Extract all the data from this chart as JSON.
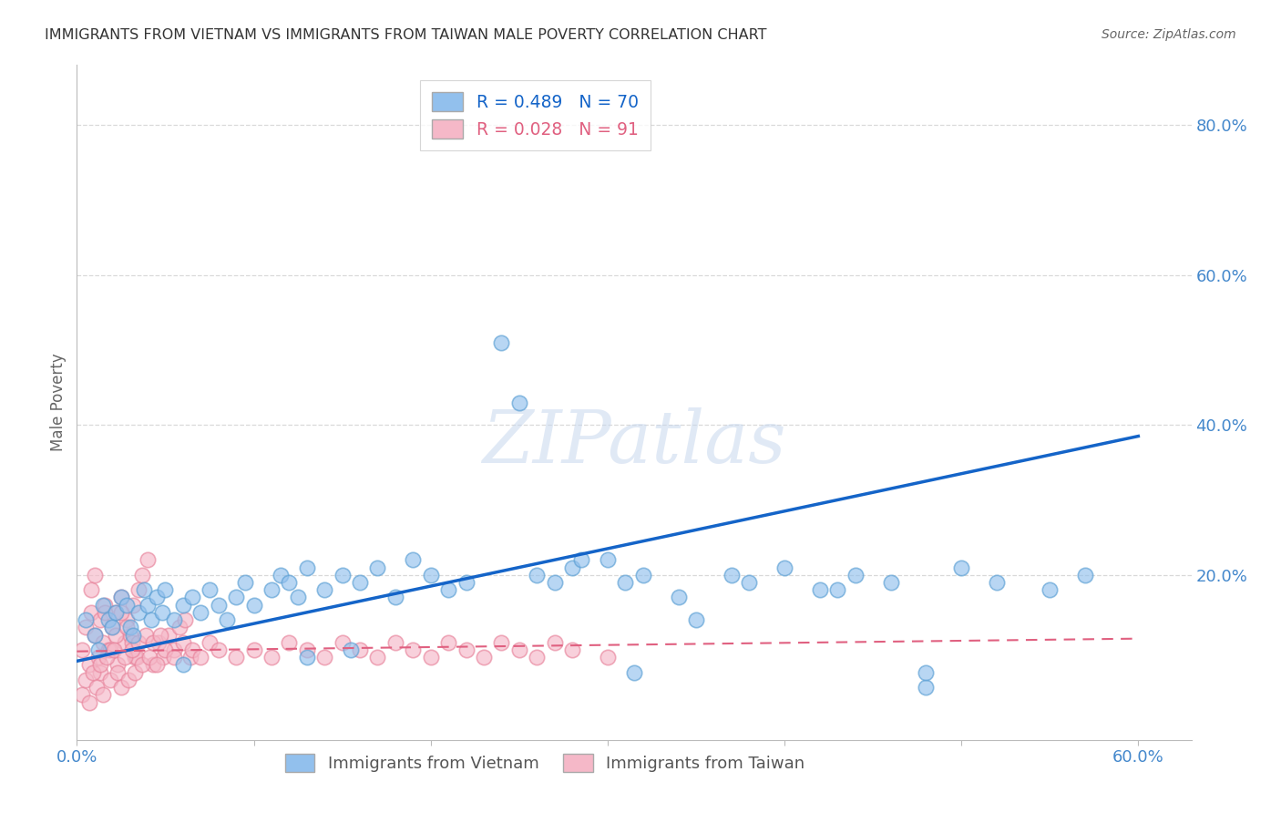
{
  "title": "IMMIGRANTS FROM VIETNAM VS IMMIGRANTS FROM TAIWAN MALE POVERTY CORRELATION CHART",
  "source": "Source: ZipAtlas.com",
  "ylabel": "Male Poverty",
  "xlim": [
    0.0,
    0.63
  ],
  "ylim": [
    -0.02,
    0.88
  ],
  "xticks": [
    0.0,
    0.6
  ],
  "xticklabels": [
    "0.0%",
    "60.0%"
  ],
  "yticks_right": [
    0.2,
    0.4,
    0.6,
    0.8
  ],
  "yticklabels_right": [
    "20.0%",
    "40.0%",
    "60.0%",
    "80.0%"
  ],
  "vietnam_color": "#92c0ed",
  "taiwan_color": "#f5b8c8",
  "vietnam_edge_color": "#5a9fd4",
  "taiwan_edge_color": "#e8849c",
  "vietnam_line_color": "#1464c8",
  "taiwan_line_color": "#e06080",
  "legend_vietnam_R": "R = 0.489",
  "legend_vietnam_N": "N = 70",
  "legend_taiwan_R": "R = 0.028",
  "legend_taiwan_N": "N = 91",
  "watermark": "ZIPatlas",
  "background_color": "#ffffff",
  "grid_color": "#d0d0d0",
  "vietnam_scatter_x": [
    0.005,
    0.01,
    0.012,
    0.015,
    0.018,
    0.02,
    0.022,
    0.025,
    0.028,
    0.03,
    0.032,
    0.035,
    0.038,
    0.04,
    0.042,
    0.045,
    0.048,
    0.05,
    0.055,
    0.06,
    0.065,
    0.07,
    0.075,
    0.08,
    0.085,
    0.09,
    0.095,
    0.1,
    0.11,
    0.115,
    0.12,
    0.125,
    0.13,
    0.14,
    0.15,
    0.16,
    0.17,
    0.18,
    0.2,
    0.21,
    0.22,
    0.25,
    0.26,
    0.28,
    0.3,
    0.31,
    0.32,
    0.34,
    0.35,
    0.37,
    0.38,
    0.4,
    0.42,
    0.44,
    0.46,
    0.48,
    0.5,
    0.52,
    0.55,
    0.57,
    0.24,
    0.19,
    0.27,
    0.06,
    0.13,
    0.155,
    0.285,
    0.315,
    0.48,
    0.43
  ],
  "vietnam_scatter_y": [
    0.14,
    0.12,
    0.1,
    0.16,
    0.14,
    0.13,
    0.15,
    0.17,
    0.16,
    0.13,
    0.12,
    0.15,
    0.18,
    0.16,
    0.14,
    0.17,
    0.15,
    0.18,
    0.14,
    0.16,
    0.17,
    0.15,
    0.18,
    0.16,
    0.14,
    0.17,
    0.19,
    0.16,
    0.18,
    0.2,
    0.19,
    0.17,
    0.21,
    0.18,
    0.2,
    0.19,
    0.21,
    0.17,
    0.2,
    0.18,
    0.19,
    0.43,
    0.2,
    0.21,
    0.22,
    0.19,
    0.2,
    0.17,
    0.14,
    0.2,
    0.19,
    0.21,
    0.18,
    0.2,
    0.19,
    0.05,
    0.21,
    0.19,
    0.18,
    0.2,
    0.51,
    0.22,
    0.19,
    0.08,
    0.09,
    0.1,
    0.22,
    0.07,
    0.07,
    0.18
  ],
  "taiwan_scatter_x": [
    0.003,
    0.005,
    0.007,
    0.008,
    0.01,
    0.012,
    0.013,
    0.015,
    0.016,
    0.018,
    0.02,
    0.022,
    0.023,
    0.025,
    0.027,
    0.028,
    0.03,
    0.032,
    0.033,
    0.035,
    0.008,
    0.01,
    0.013,
    0.016,
    0.019,
    0.022,
    0.025,
    0.028,
    0.031,
    0.034,
    0.037,
    0.04,
    0.043,
    0.046,
    0.049,
    0.052,
    0.055,
    0.058,
    0.061,
    0.064,
    0.003,
    0.005,
    0.007,
    0.009,
    0.011,
    0.013,
    0.015,
    0.017,
    0.019,
    0.021,
    0.023,
    0.025,
    0.027,
    0.029,
    0.031,
    0.033,
    0.035,
    0.037,
    0.039,
    0.041,
    0.043,
    0.045,
    0.047,
    0.05,
    0.055,
    0.06,
    0.065,
    0.07,
    0.075,
    0.08,
    0.09,
    0.1,
    0.11,
    0.12,
    0.13,
    0.14,
    0.15,
    0.16,
    0.17,
    0.18,
    0.19,
    0.2,
    0.21,
    0.22,
    0.23,
    0.24,
    0.25,
    0.26,
    0.27,
    0.28,
    0.3
  ],
  "taiwan_scatter_y": [
    0.1,
    0.13,
    0.08,
    0.15,
    0.12,
    0.09,
    0.14,
    0.11,
    0.16,
    0.1,
    0.13,
    0.15,
    0.08,
    0.17,
    0.11,
    0.14,
    0.12,
    0.16,
    0.09,
    0.18,
    0.18,
    0.2,
    0.07,
    0.15,
    0.1,
    0.12,
    0.15,
    0.13,
    0.11,
    0.09,
    0.2,
    0.22,
    0.08,
    0.11,
    0.09,
    0.12,
    0.1,
    0.13,
    0.14,
    0.09,
    0.04,
    0.06,
    0.03,
    0.07,
    0.05,
    0.08,
    0.04,
    0.09,
    0.06,
    0.1,
    0.07,
    0.05,
    0.09,
    0.06,
    0.1,
    0.07,
    0.11,
    0.08,
    0.12,
    0.09,
    0.11,
    0.08,
    0.12,
    0.1,
    0.09,
    0.11,
    0.1,
    0.09,
    0.11,
    0.1,
    0.09,
    0.1,
    0.09,
    0.11,
    0.1,
    0.09,
    0.11,
    0.1,
    0.09,
    0.11,
    0.1,
    0.09,
    0.11,
    0.1,
    0.09,
    0.11,
    0.1,
    0.09,
    0.11,
    0.1,
    0.09
  ],
  "vietnam_trendline_x": [
    0.0,
    0.6
  ],
  "vietnam_trendline_y": [
    0.085,
    0.385
  ],
  "taiwan_trendline_x": [
    0.0,
    0.6
  ],
  "taiwan_trendline_y": [
    0.098,
    0.115
  ]
}
